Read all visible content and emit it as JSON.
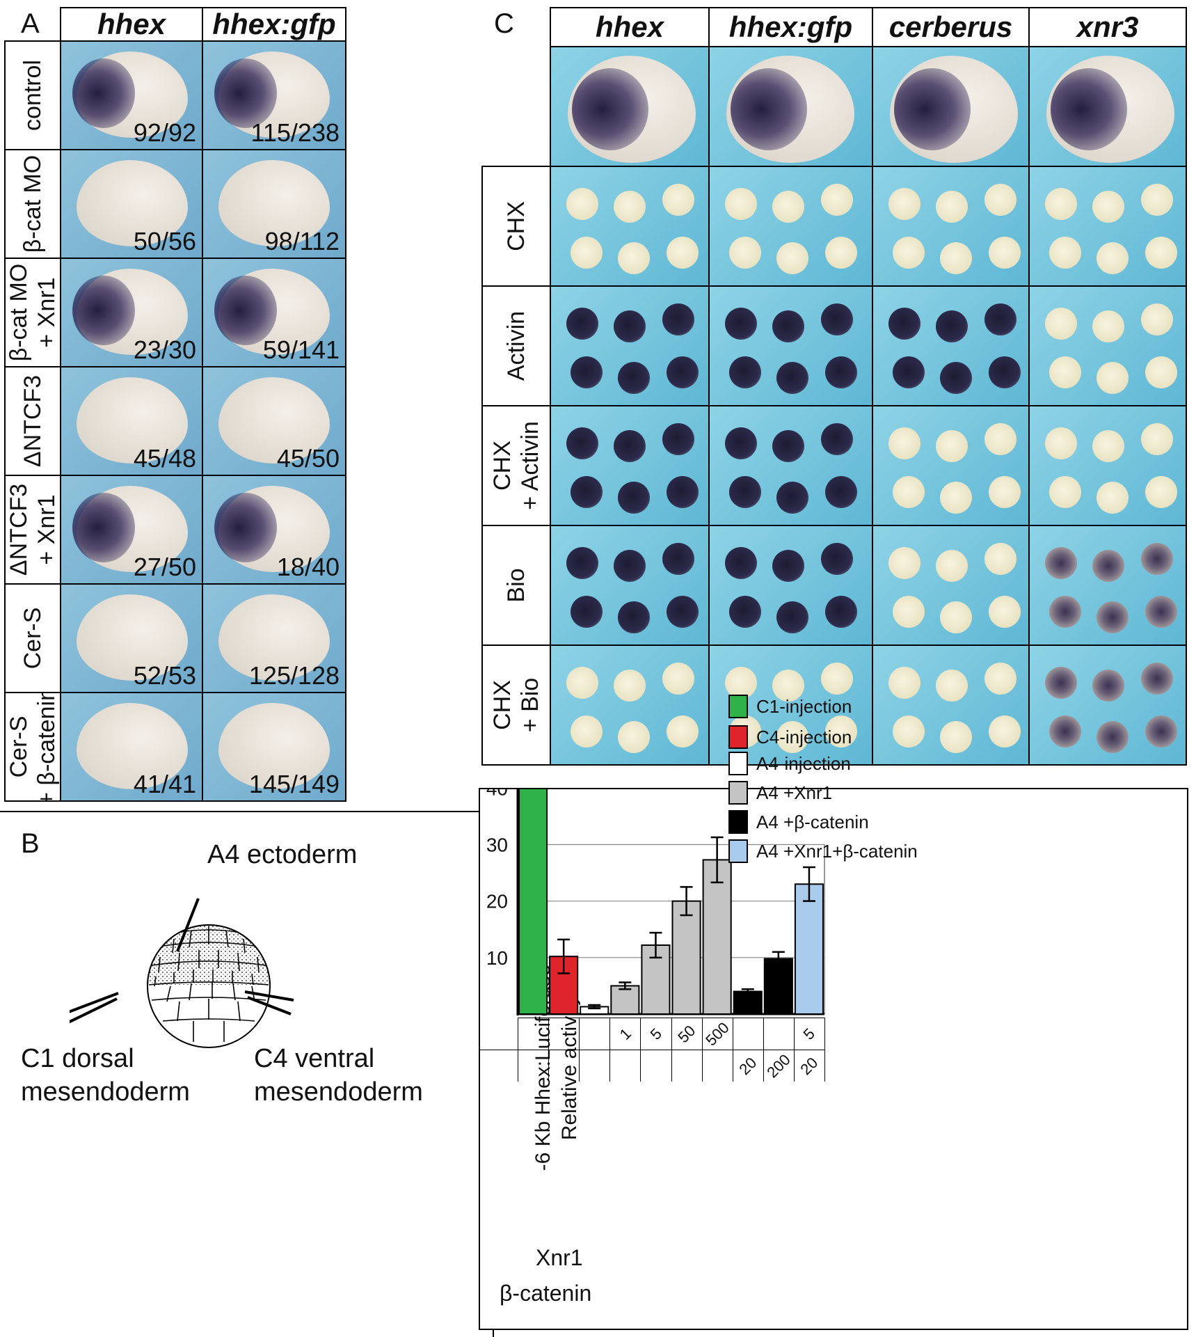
{
  "panelA": {
    "letter": "A",
    "columns": [
      "hhex",
      "hhex:gfp"
    ],
    "rows": [
      {
        "label": "control",
        "counts": [
          "92/92",
          "115/238"
        ],
        "stain": [
          "strong",
          "strong"
        ]
      },
      {
        "label": "β-cat MO",
        "counts": [
          "50/56",
          "98/112"
        ],
        "stain": [
          "none",
          "none"
        ]
      },
      {
        "label": "β-cat MO\n+ Xnr1",
        "counts": [
          "23/30",
          "59/141"
        ],
        "stain": [
          "strong",
          "strong"
        ]
      },
      {
        "label": "ΔNTCF3",
        "counts": [
          "45/48",
          "45/50"
        ],
        "stain": [
          "none",
          "none"
        ]
      },
      {
        "label": "ΔNTCF3\n+ Xnr1",
        "counts": [
          "27/50",
          "18/40"
        ],
        "stain": [
          "strong",
          "strong"
        ]
      },
      {
        "label": "Cer-S",
        "counts": [
          "52/53",
          "125/128"
        ],
        "stain": [
          "none",
          "none"
        ]
      },
      {
        "label": "Cer-S\n+ β-catenin",
        "counts": [
          "41/41",
          "145/149"
        ],
        "stain": [
          "none",
          "none"
        ]
      }
    ]
  },
  "panelB": {
    "letter": "B",
    "label_a4": "A4 ectoderm",
    "label_c1_line1": "C1 dorsal",
    "label_c1_line2": "mesendoderm",
    "label_c4_line1": "C4 ventral",
    "label_c4_line2": "mesendoderm"
  },
  "panelC": {
    "letter": "C",
    "columns": [
      "hhex",
      "hhex:gfp",
      "cerberus",
      "xnr3"
    ],
    "rows": [
      {
        "label": "CHX",
        "stain": [
          "none",
          "none",
          "none",
          "none"
        ]
      },
      {
        "label": "Activin",
        "stain": [
          "dark",
          "dark",
          "dark",
          "none"
        ]
      },
      {
        "label": "CHX\n+ Activin",
        "stain": [
          "dark",
          "dark",
          "none",
          "none"
        ]
      },
      {
        "label": "Bio",
        "stain": [
          "dark",
          "dark",
          "none",
          "spot"
        ]
      },
      {
        "label": "CHX\n+ Bio",
        "stain": [
          "none",
          "none",
          "none",
          "spot"
        ]
      }
    ]
  },
  "chart_data": {
    "type": "bar",
    "ylabel_line1": "-6 Kb Hhex:Luciferase",
    "ylabel_line2": "Relative activity",
    "ylim": [
      0,
      60
    ],
    "yticks": [
      10,
      20,
      30,
      40,
      50,
      60
    ],
    "grid": true,
    "legend_position": "top-right",
    "legend": [
      {
        "label": "C1-injection",
        "color": "#2fb24a"
      },
      {
        "label": "C4-injection",
        "color": "#e0242b"
      },
      {
        "label": "A4-injection",
        "color": "#ffffff"
      },
      {
        "label": "A4 +Xnr1",
        "color": "#c4c4c4"
      },
      {
        "label": "A4 +β-catenin",
        "color": "#000000"
      },
      {
        "label": "A4 +Xnr1+β-catenin",
        "color": "#a9cbec"
      }
    ],
    "bars": [
      {
        "value": 52.5,
        "error": 5.5,
        "color": "#2fb24a",
        "xnr1": "",
        "bcatenin": ""
      },
      {
        "value": 10.2,
        "error": 3.0,
        "color": "#e0242b",
        "xnr1": "",
        "bcatenin": ""
      },
      {
        "value": 1.3,
        "error": 0.3,
        "color": "#ffffff",
        "xnr1": "",
        "bcatenin": ""
      },
      {
        "value": 5.0,
        "error": 0.6,
        "color": "#c4c4c4",
        "xnr1": "1",
        "bcatenin": ""
      },
      {
        "value": 12.2,
        "error": 2.2,
        "color": "#c4c4c4",
        "xnr1": "5",
        "bcatenin": ""
      },
      {
        "value": 20.0,
        "error": 2.5,
        "color": "#c4c4c4",
        "xnr1": "50",
        "bcatenin": ""
      },
      {
        "value": 27.3,
        "error": 4.0,
        "color": "#c4c4c4",
        "xnr1": "500",
        "bcatenin": ""
      },
      {
        "value": 4.0,
        "error": 0.4,
        "color": "#000000",
        "xnr1": "",
        "bcatenin": "20"
      },
      {
        "value": 9.8,
        "error": 1.2,
        "color": "#000000",
        "xnr1": "",
        "bcatenin": "200"
      },
      {
        "value": 23.0,
        "error": 3.0,
        "color": "#a9cbec",
        "xnr1": "5",
        "bcatenin": "20"
      }
    ],
    "row_labels": [
      "Xnr1",
      "β-catenin"
    ]
  }
}
